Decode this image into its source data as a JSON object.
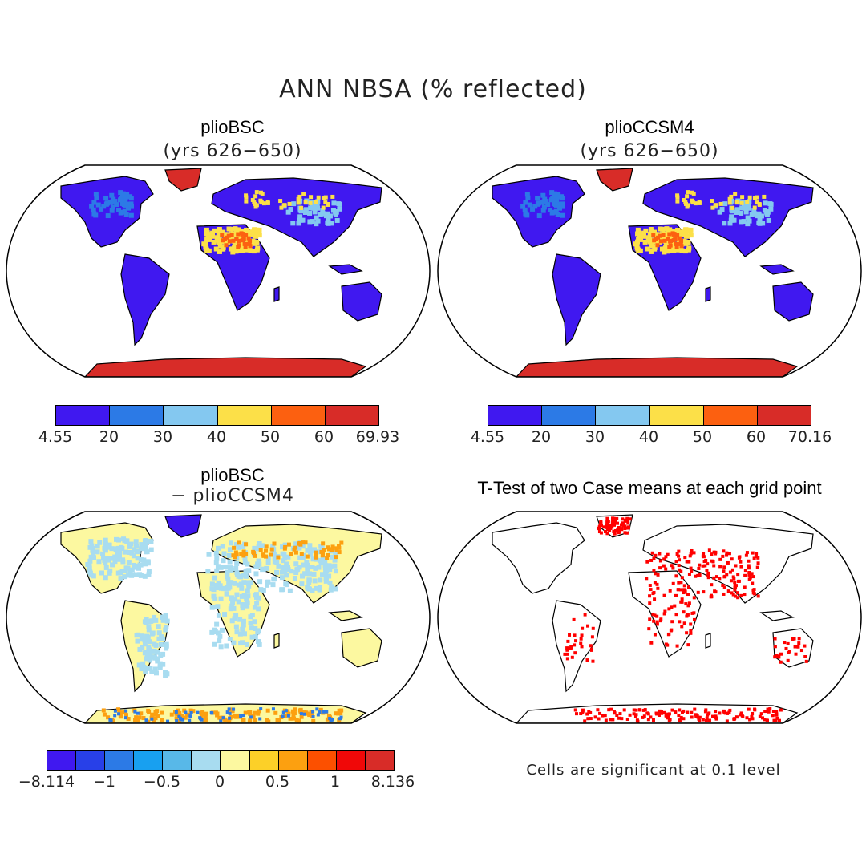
{
  "figure": {
    "title": "ANN NBSA (% reflected)"
  },
  "panels": [
    {
      "id": "tl",
      "title": "plioBSC",
      "subtitle": "(yrs 626−650)",
      "colorbar": {
        "colors": [
          "#4018f0",
          "#2c7ae6",
          "#84c8f0",
          "#fce048",
          "#fc6010",
          "#d82c28"
        ],
        "labels": [
          "4.55",
          "20",
          "30",
          "40",
          "50",
          "60",
          "69.93"
        ]
      }
    },
    {
      "id": "tr",
      "title": "plioCCSM4",
      "subtitle": "(yrs 626−650)",
      "colorbar": {
        "colors": [
          "#4018f0",
          "#2c7ae6",
          "#84c8f0",
          "#fce048",
          "#fc6010",
          "#d82c28"
        ],
        "labels": [
          "4.55",
          "20",
          "30",
          "40",
          "50",
          "60",
          "70.16"
        ]
      }
    },
    {
      "id": "bl",
      "title": "plioBSC",
      "subtitle": "− plioCCSM4",
      "colorbar": {
        "colors": [
          "#4018f0",
          "#2840e8",
          "#2c7ae6",
          "#18a0f0",
          "#58b8e8",
          "#a8dcf0",
          "#fcf8a0",
          "#fcd028",
          "#fca010",
          "#fc5000",
          "#f00808",
          "#d82c28"
        ],
        "labels": [
          "−8.114",
          "−1",
          "−0.5",
          "0",
          "0.5",
          "1",
          "8.136"
        ]
      }
    },
    {
      "id": "br",
      "title": "T-Test of two Case means at each grid point",
      "note": "Cells are significant at 0.1 level"
    }
  ],
  "map_colors": {
    "low": "#4018f0",
    "mid": "#2c7ae6",
    "desert": "#fce048",
    "ice": "#d82c28",
    "diff_land": "#fcf8a0",
    "diff_cool": "#a8dcf0",
    "signif": "#ff0000"
  }
}
